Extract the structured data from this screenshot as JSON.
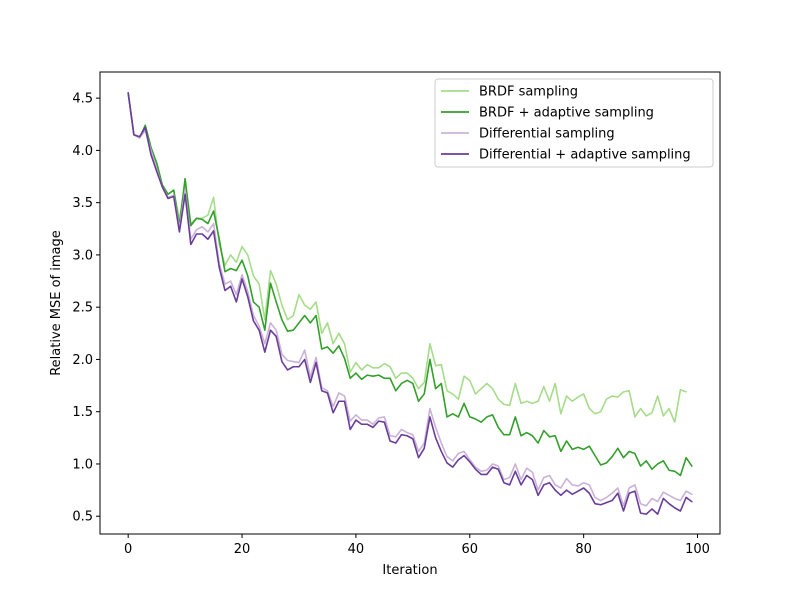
{
  "chart_data": {
    "type": "line",
    "title": "",
    "xlabel": "Iteration",
    "ylabel": "Relative MSE of image",
    "xlim": [
      -4.95,
      103.95
    ],
    "ylim": [
      0.33,
      4.75
    ],
    "xticks": [
      0,
      20,
      40,
      60,
      80,
      100
    ],
    "yticks": [
      0.5,
      1.0,
      1.5,
      2.0,
      2.5,
      3.0,
      3.5,
      4.0,
      4.5
    ],
    "ytick_labels": [
      "0.5",
      "1.0",
      "1.5",
      "2.0",
      "2.5",
      "3.0",
      "3.5",
      "4.0",
      "4.5"
    ],
    "grid": false,
    "legend_position": "top-right",
    "series": [
      {
        "name": "BRDF sampling",
        "color": "#a6dc8a",
        "values": [
          4.55,
          4.15,
          4.12,
          4.2,
          3.99,
          3.88,
          3.67,
          3.58,
          3.62,
          3.34,
          3.68,
          3.3,
          3.35,
          3.35,
          3.38,
          3.55,
          3.1,
          2.9,
          3.0,
          2.93,
          3.08,
          3.0,
          2.8,
          2.72,
          2.38,
          2.85,
          2.72,
          2.52,
          2.38,
          2.42,
          2.62,
          2.52,
          2.48,
          2.55,
          2.25,
          2.35,
          2.15,
          2.25,
          2.15,
          1.88,
          1.97,
          1.9,
          1.95,
          1.92,
          1.92,
          1.96,
          1.93,
          1.82,
          1.87,
          1.87,
          1.82,
          1.72,
          1.78,
          2.15,
          1.94,
          1.95,
          1.7,
          1.67,
          1.62,
          1.84,
          1.8,
          1.67,
          1.72,
          1.77,
          1.72,
          1.62,
          1.57,
          1.56,
          1.77,
          1.58,
          1.6,
          1.58,
          1.6,
          1.74,
          1.6,
          1.77,
          1.48,
          1.65,
          1.6,
          1.64,
          1.67,
          1.53,
          1.48,
          1.5,
          1.62,
          1.65,
          1.64,
          1.69,
          1.7,
          1.45,
          1.53,
          1.46,
          1.49,
          1.65,
          1.46,
          1.53,
          1.4,
          1.71,
          1.69
        ]
      },
      {
        "name": "BRDF + adaptive sampling",
        "color": "#33a02c",
        "values": [
          4.55,
          4.15,
          4.12,
          4.24,
          4.03,
          3.88,
          3.67,
          3.58,
          3.62,
          3.28,
          3.73,
          3.28,
          3.35,
          3.34,
          3.3,
          3.42,
          3.15,
          2.84,
          2.87,
          2.85,
          2.95,
          2.8,
          2.55,
          2.5,
          2.28,
          2.73,
          2.55,
          2.38,
          2.27,
          2.28,
          2.35,
          2.42,
          2.35,
          2.42,
          2.1,
          2.12,
          2.06,
          2.13,
          2.01,
          1.82,
          1.87,
          1.81,
          1.85,
          1.84,
          1.85,
          1.82,
          1.82,
          1.7,
          1.77,
          1.8,
          1.77,
          1.6,
          1.67,
          2.0,
          1.72,
          1.77,
          1.45,
          1.48,
          1.45,
          1.58,
          1.45,
          1.43,
          1.4,
          1.45,
          1.47,
          1.35,
          1.28,
          1.28,
          1.45,
          1.27,
          1.3,
          1.27,
          1.2,
          1.32,
          1.26,
          1.27,
          1.12,
          1.22,
          1.14,
          1.16,
          1.14,
          1.17,
          1.08,
          0.99,
          1.01,
          1.07,
          1.15,
          1.06,
          1.12,
          1.1,
          0.98,
          1.03,
          0.95,
          1.0,
          1.03,
          0.94,
          0.93,
          0.89,
          1.06,
          0.98
        ]
      },
      {
        "name": "Differential sampling",
        "color": "#cab2d6",
        "values": [
          4.55,
          4.15,
          4.12,
          4.19,
          4.0,
          3.82,
          3.65,
          3.55,
          3.57,
          3.25,
          3.62,
          3.15,
          3.24,
          3.27,
          3.22,
          3.3,
          2.92,
          2.72,
          2.75,
          2.62,
          2.81,
          2.65,
          2.42,
          2.32,
          2.15,
          2.35,
          2.28,
          2.05,
          1.99,
          1.98,
          1.97,
          2.09,
          1.83,
          2.02,
          1.73,
          1.7,
          1.55,
          1.68,
          1.65,
          1.41,
          1.47,
          1.42,
          1.42,
          1.38,
          1.44,
          1.45,
          1.27,
          1.26,
          1.33,
          1.3,
          1.28,
          1.12,
          1.2,
          1.53,
          1.35,
          1.2,
          1.07,
          1.03,
          1.1,
          1.12,
          1.04,
          0.97,
          0.93,
          0.94,
          1.0,
          0.98,
          0.85,
          0.87,
          1.0,
          0.85,
          0.96,
          0.92,
          0.75,
          0.87,
          0.89,
          0.8,
          0.77,
          0.86,
          0.8,
          0.79,
          0.82,
          0.8,
          0.68,
          0.65,
          0.68,
          0.72,
          0.77,
          0.6,
          0.77,
          0.8,
          0.62,
          0.6,
          0.67,
          0.64,
          0.73,
          0.7,
          0.67,
          0.65,
          0.74,
          0.71
        ]
      },
      {
        "name": "Differential + adaptive sampling",
        "color": "#6a3d9a",
        "values": [
          4.55,
          4.15,
          4.13,
          4.22,
          3.96,
          3.8,
          3.65,
          3.54,
          3.56,
          3.22,
          3.58,
          3.1,
          3.2,
          3.2,
          3.15,
          3.23,
          2.88,
          2.66,
          2.7,
          2.55,
          2.77,
          2.6,
          2.37,
          2.28,
          2.07,
          2.28,
          2.22,
          1.98,
          1.9,
          1.93,
          1.93,
          2.0,
          1.78,
          1.97,
          1.7,
          1.68,
          1.49,
          1.6,
          1.6,
          1.33,
          1.42,
          1.38,
          1.38,
          1.35,
          1.41,
          1.4,
          1.22,
          1.2,
          1.28,
          1.27,
          1.24,
          1.06,
          1.15,
          1.45,
          1.25,
          1.12,
          1.01,
          0.97,
          1.04,
          1.08,
          1.02,
          0.95,
          0.9,
          0.9,
          0.97,
          0.95,
          0.82,
          0.8,
          0.93,
          0.8,
          0.89,
          0.85,
          0.7,
          0.8,
          0.82,
          0.75,
          0.7,
          0.75,
          0.71,
          0.74,
          0.77,
          0.72,
          0.62,
          0.61,
          0.63,
          0.65,
          0.72,
          0.55,
          0.72,
          0.74,
          0.53,
          0.52,
          0.57,
          0.52,
          0.67,
          0.62,
          0.58,
          0.55,
          0.68,
          0.64
        ]
      }
    ]
  }
}
